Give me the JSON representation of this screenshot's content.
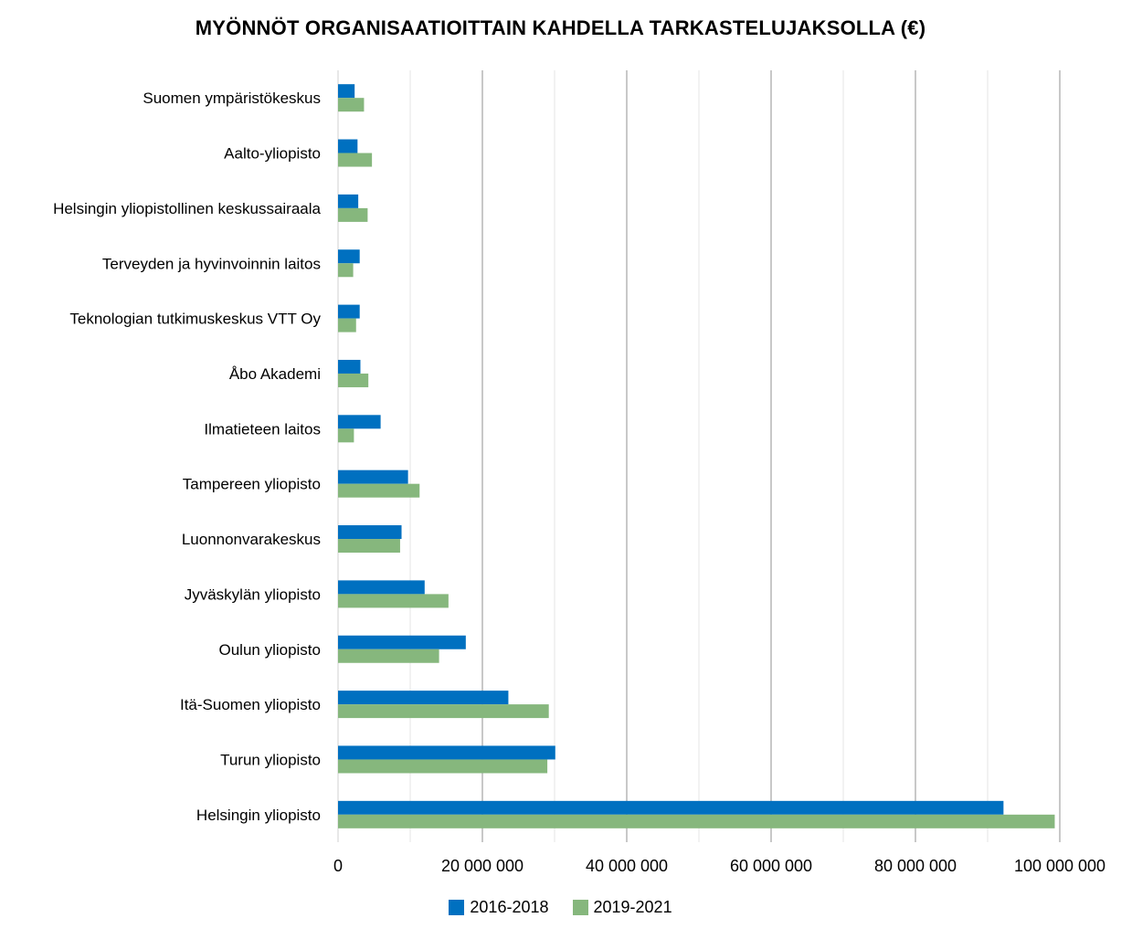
{
  "chart_data": {
    "type": "bar",
    "orientation": "horizontal",
    "title": "MYÖNNÖT ORGANISAATIOITTAIN KAHDELLA TARKASTELUJAKSOLLA (€)",
    "categories": [
      "Suomen ympäristökeskus",
      "Aalto-yliopisto",
      "Helsingin yliopistollinen keskussairaala",
      "Terveyden ja hyvinvoinnin laitos",
      "Teknologian tutkimuskeskus VTT Oy",
      "Åbo Akademi",
      "Ilmatieteen laitos",
      "Tampereen yliopisto",
      "Luonnonvarakeskus",
      "Jyväskylän yliopisto",
      "Oulun yliopisto",
      "Itä-Suomen yliopisto",
      "Turun yliopisto",
      "Helsingin yliopisto"
    ],
    "series": [
      {
        "name": "2016-2018",
        "color": "#0070c0",
        "values": [
          2300000,
          2700000,
          2800000,
          3000000,
          3000000,
          3100000,
          5900000,
          9700000,
          8800000,
          12000000,
          17700000,
          23600000,
          30100000,
          92200000
        ]
      },
      {
        "name": "2019-2021",
        "color": "#86b77d",
        "values": [
          3600000,
          4700000,
          4100000,
          2100000,
          2500000,
          4200000,
          2200000,
          11300000,
          8600000,
          15300000,
          14000000,
          29200000,
          29000000,
          99300000
        ]
      }
    ],
    "xlim": [
      0,
      100000000
    ],
    "xticks": [
      0,
      20000000,
      40000000,
      60000000,
      80000000,
      100000000
    ],
    "xtick_labels": [
      "0",
      "20 000 000",
      "40 000 000",
      "60 000 000",
      "80 000 000",
      "100 000 000"
    ],
    "xlabel": "",
    "ylabel": "",
    "grid": true,
    "legend_position": "bottom"
  }
}
